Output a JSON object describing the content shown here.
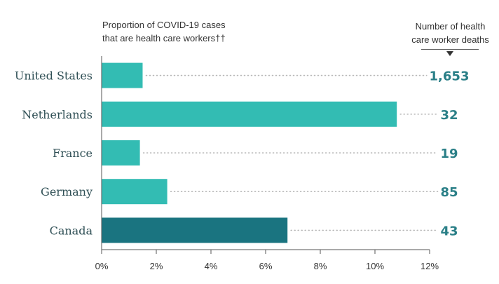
{
  "header": {
    "left_title_line1": "Proportion of COVID-19 cases",
    "left_title_line2": "that are health care workers††",
    "right_title_line1": "Number of health",
    "right_title_line2": "care worker deaths"
  },
  "colors": {
    "bar": "#33bcb3",
    "highlight_bar": "#1a7480",
    "death_text": "#2a7f87",
    "axis": "#555555",
    "leader": "#b8b8b8"
  },
  "chart_data": {
    "type": "bar",
    "orientation": "horizontal",
    "categories": [
      "United States",
      "Netherlands",
      "France",
      "Germany",
      "Canada"
    ],
    "series": [
      {
        "values": [
          1.5,
          10.8,
          1.4,
          2.4,
          6.8
        ]
      }
    ],
    "highlighted": [
      "Canada"
    ],
    "deaths": [
      "1,653",
      "32",
      "19",
      "85",
      "43"
    ],
    "xlim": [
      0,
      12
    ],
    "ticks": [
      0,
      2,
      4,
      6,
      8,
      10,
      12
    ],
    "tick_labels": [
      "0%",
      "2%",
      "4%",
      "6%",
      "8%",
      "10%",
      "12%"
    ],
    "grid": false
  }
}
